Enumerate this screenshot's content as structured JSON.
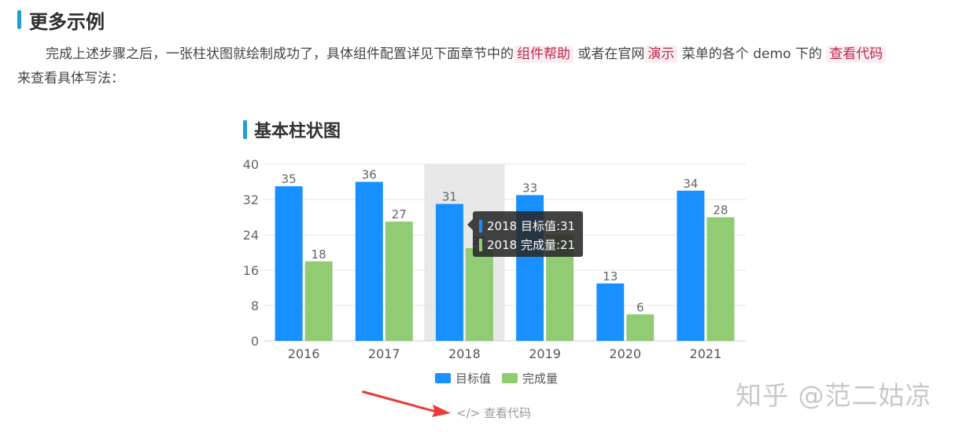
{
  "section": {
    "title": "更多示例"
  },
  "paragraph": {
    "text1": "完成上述步骤之后，一张柱状图就绘制成功了，具体组件配置详见下面章节中的",
    "link1": "组件帮助",
    "text2": "或者在官网",
    "link2": "演示",
    "text3": "菜单的各个 demo 下的",
    "link3": "查看代码",
    "text4": "来查看具体写法："
  },
  "chart_title": "基本柱状图",
  "chart_data": {
    "type": "bar",
    "categories": [
      "2016",
      "2017",
      "2018",
      "2019",
      "2020",
      "2021"
    ],
    "series": [
      {
        "name": "目标值",
        "values": [
          35,
          36,
          31,
          33,
          13,
          34
        ],
        "color": "#1890ff"
      },
      {
        "name": "完成量",
        "values": [
          18,
          27,
          21,
          24,
          6,
          28
        ],
        "color": "#91cb74"
      }
    ],
    "ylim": [
      0,
      40
    ],
    "yticks": [
      "0",
      "8",
      "16",
      "24",
      "32",
      "40"
    ],
    "grid": true,
    "legend": "bottom",
    "highlight_category": "2018"
  },
  "tooltip": {
    "line1": "2018 目标值:31",
    "line2": "2018 完成量:21"
  },
  "view_code": "</> 查看代码",
  "watermark": "知乎 @范二姑凉",
  "colors": {
    "accent": "#1e9fd6",
    "link": "#c0254a",
    "arrow": "#ee3a3a"
  }
}
